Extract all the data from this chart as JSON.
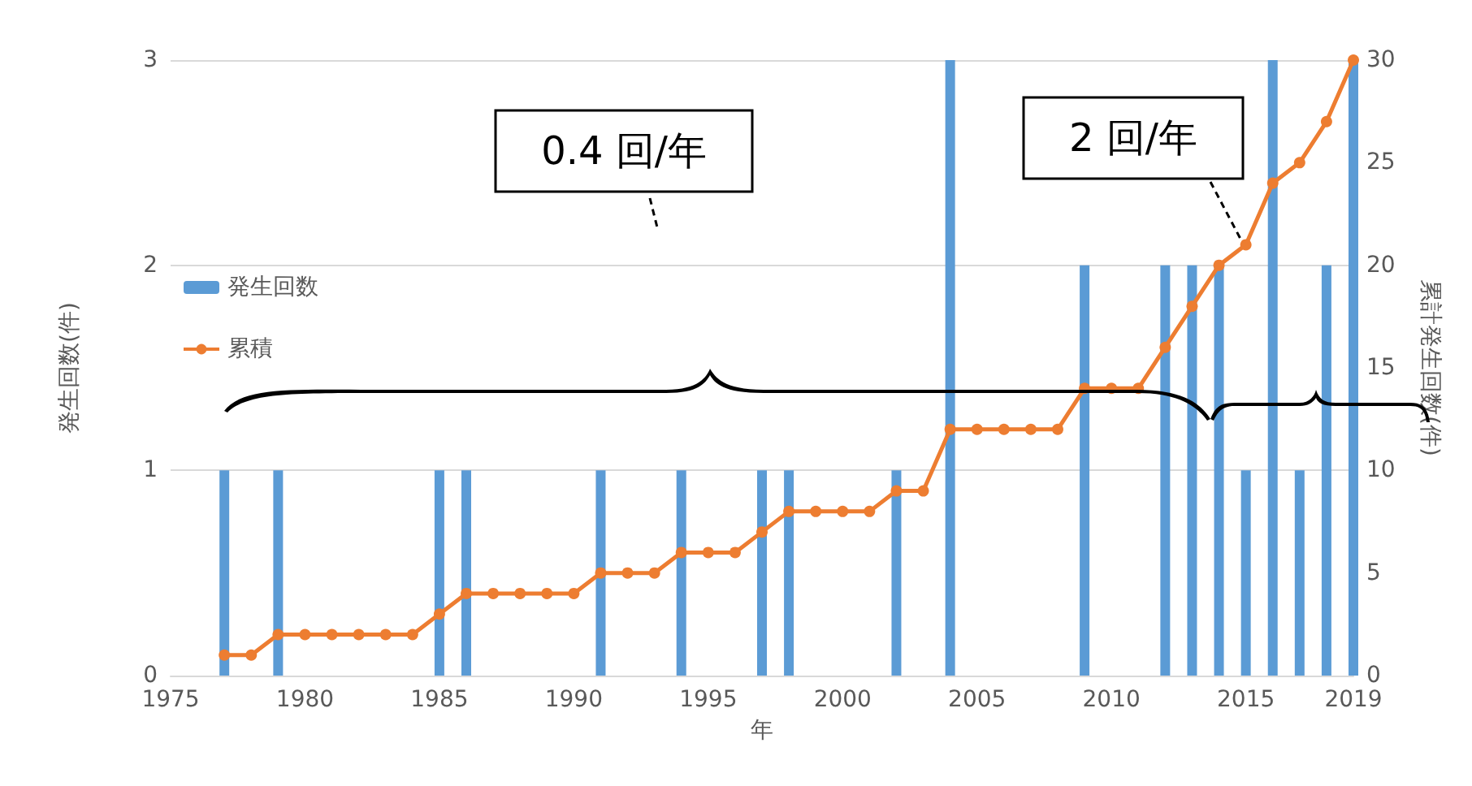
{
  "chart_data": {
    "type": "bar",
    "xlabel": "年",
    "ylabel": "発生回数(件)",
    "y2label": "累計発生回数(件)",
    "series": [
      {
        "name": "発生回数",
        "color": "#5b9bd5",
        "x": [
          1977,
          1979,
          1985,
          1986,
          1991,
          1994,
          1997,
          1998,
          2002,
          2004,
          2009,
          2012,
          2013,
          2014,
          2015,
          2016,
          2017,
          2018,
          2019
        ],
        "values": [
          1,
          1,
          1,
          1,
          1,
          1,
          1,
          1,
          1,
          3,
          2,
          2,
          2,
          2,
          1,
          3,
          1,
          2,
          3
        ]
      },
      {
        "name": "累積",
        "type": "line",
        "axis": "y2",
        "color": "#ed7d31",
        "x": [
          1977,
          1978,
          1979,
          1980,
          1981,
          1982,
          1983,
          1984,
          1985,
          1986,
          1987,
          1988,
          1989,
          1990,
          1991,
          1992,
          1993,
          1994,
          1995,
          1996,
          1997,
          1998,
          1999,
          2000,
          2001,
          2002,
          2003,
          2004,
          2005,
          2006,
          2007,
          2008,
          2009,
          2010,
          2011,
          2012,
          2013,
          2014,
          2015,
          2016,
          2017,
          2018,
          2019
        ],
        "values": [
          1,
          1,
          2,
          2,
          2,
          2,
          2,
          2,
          3,
          4,
          4,
          4,
          4,
          4,
          5,
          5,
          5,
          6,
          6,
          6,
          7,
          8,
          8,
          8,
          8,
          9,
          9,
          12,
          12,
          12,
          12,
          12,
          14,
          14,
          14,
          16,
          18,
          20,
          21,
          24,
          25,
          27,
          30
        ]
      }
    ],
    "xlim": [
      1975,
      2019
    ],
    "xticks": [
      1975,
      1980,
      1985,
      1990,
      1995,
      2000,
      2005,
      2010,
      2015,
      2019
    ],
    "ylim": [
      0,
      3
    ],
    "yticks": [
      0,
      1,
      2,
      3
    ],
    "y2lim": [
      0,
      30
    ],
    "y2ticks": [
      0,
      5,
      10,
      15,
      20,
      25,
      30
    ],
    "annotations": [
      "0.4 回/年",
      "2 回/年"
    ],
    "grid": "y",
    "legend": "left",
    "marker": "circle",
    "line_style": "solid"
  }
}
